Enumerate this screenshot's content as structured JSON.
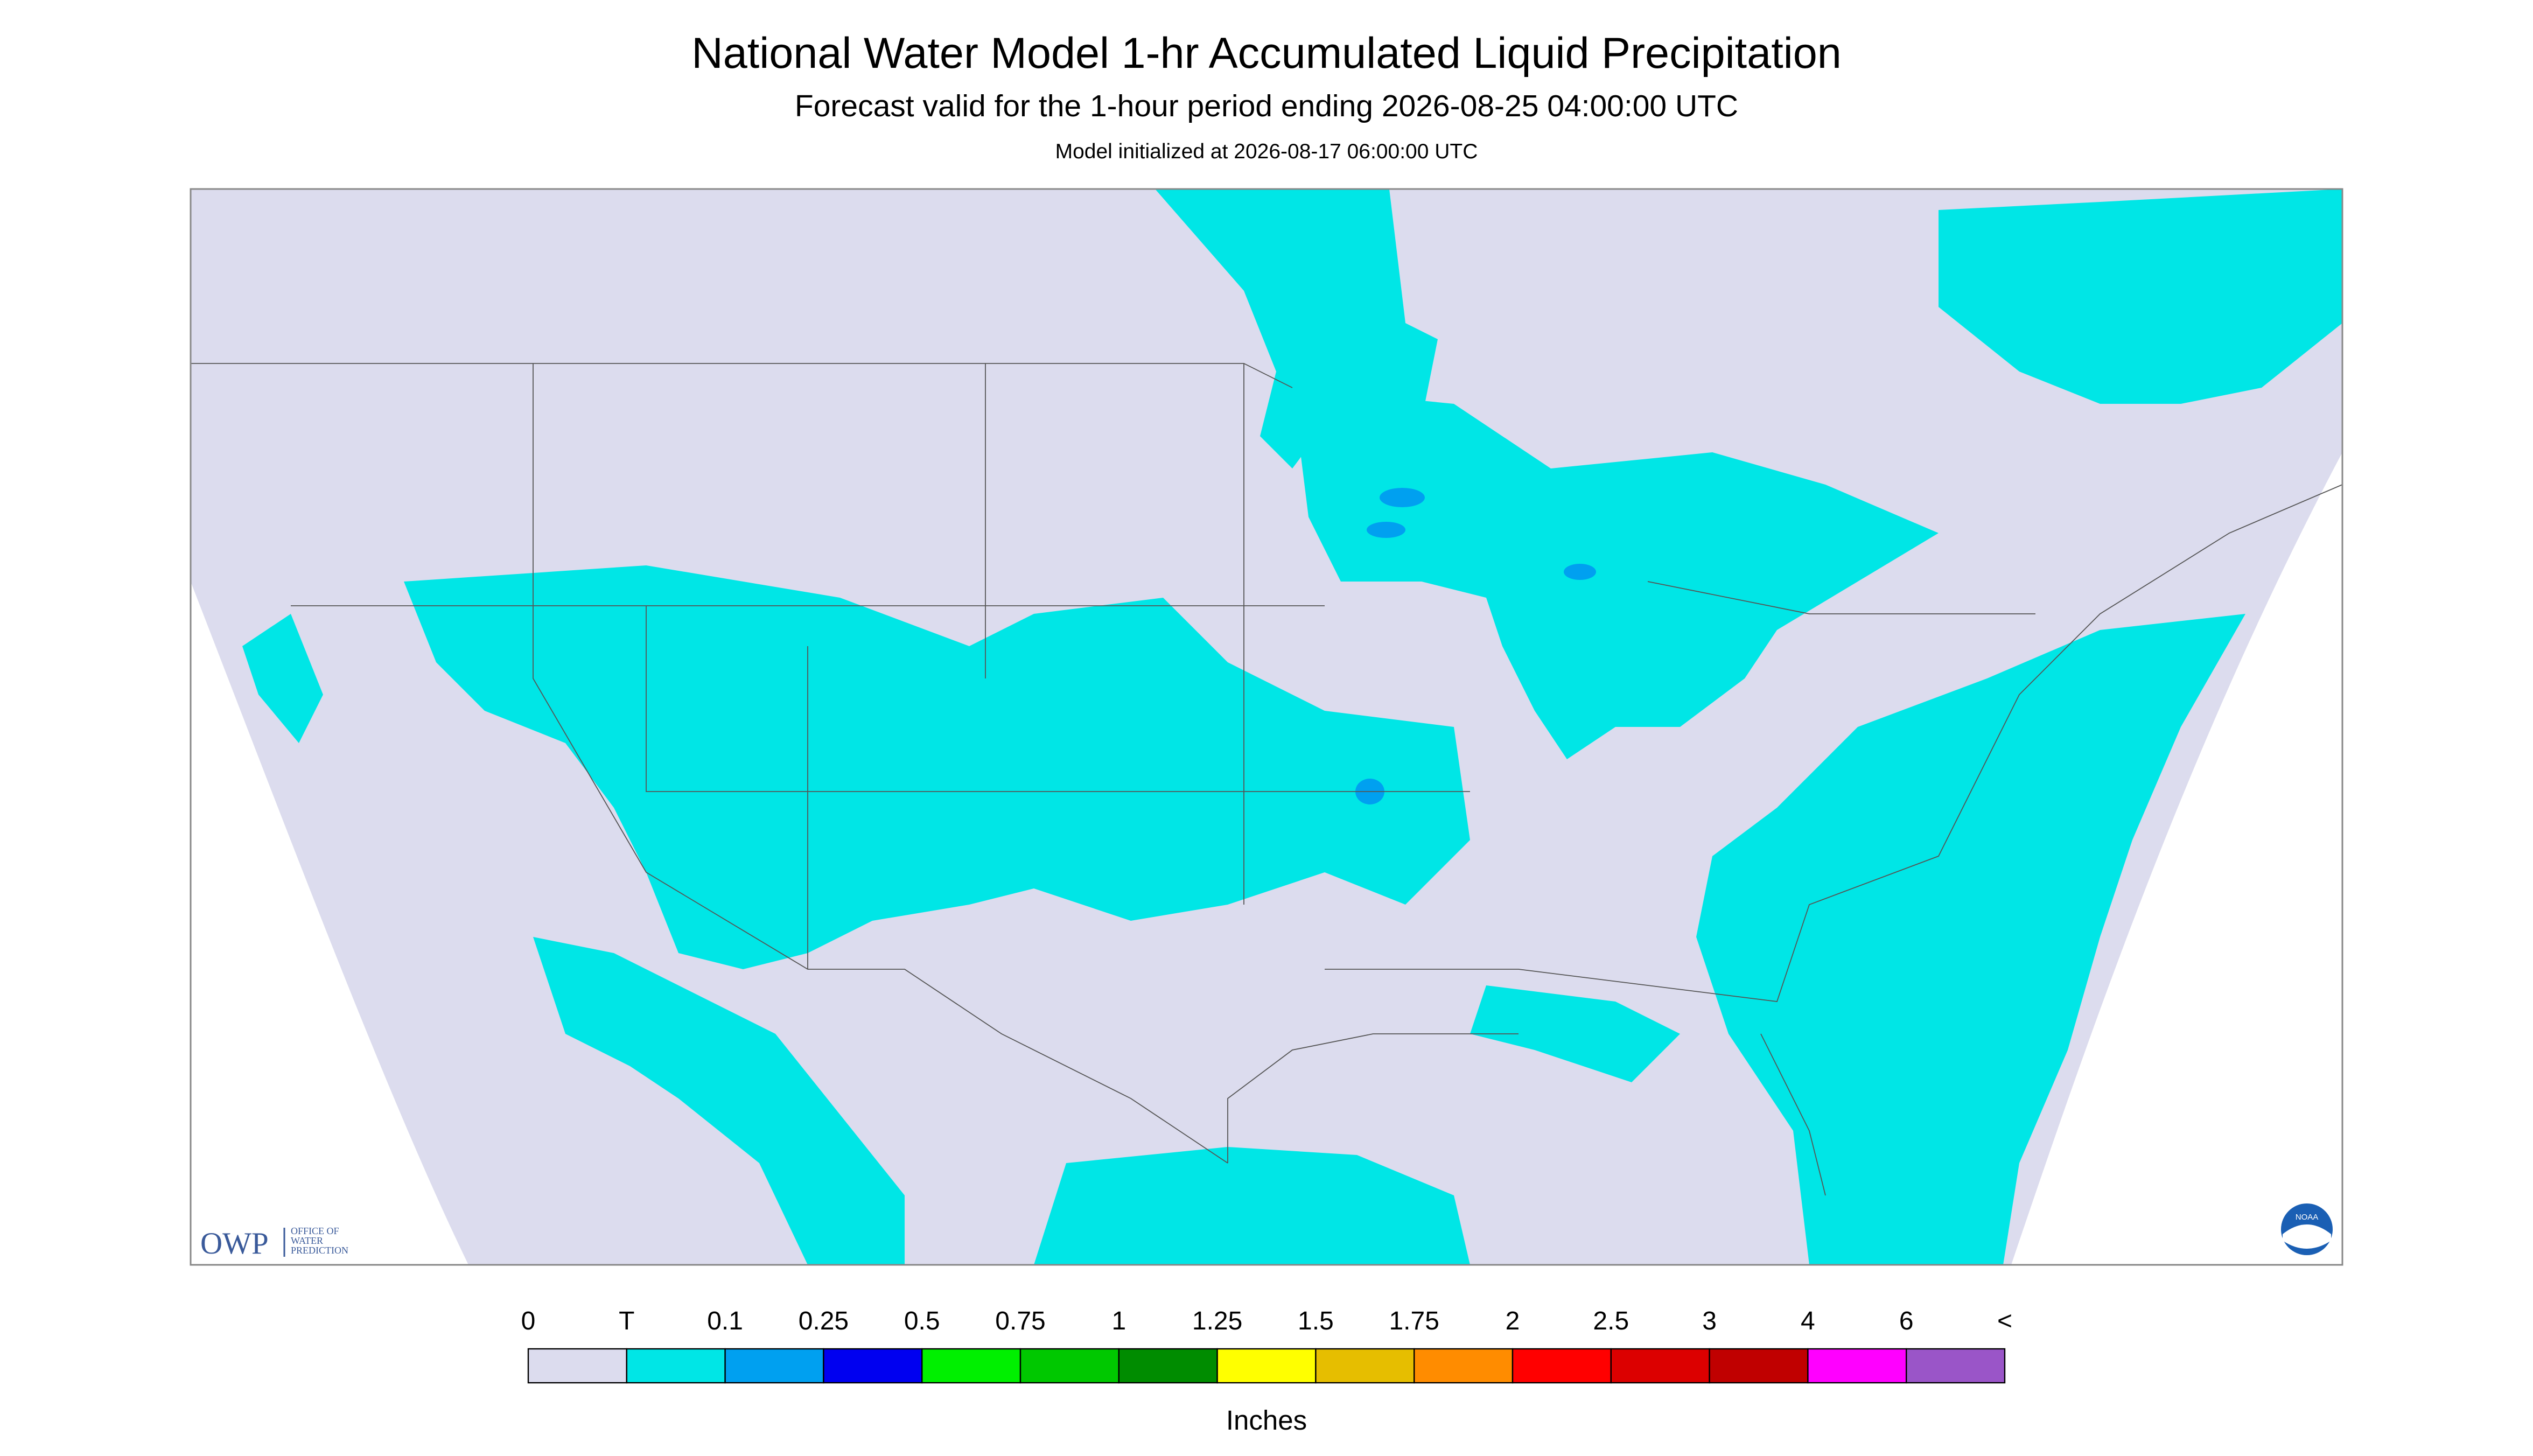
{
  "header": {
    "title": "National Water Model 1-hr Accumulated Liquid Precipitation",
    "subtitle": "Forecast valid for the 1-hour period ending 2026-08-25 04:00:00 UTC",
    "init": "Model initialized at 2026-08-17 06:00:00 UTC"
  },
  "logos": {
    "owp": "OWP",
    "owp_line1": "OFFICE OF",
    "owp_line2": "WATER",
    "owp_line3": "PREDICTION",
    "noaa": "NOAA"
  },
  "colorbar": {
    "labels": [
      "0",
      "T",
      "0.1",
      "0.25",
      "0.5",
      "0.75",
      "1",
      "1.25",
      "1.5",
      "1.75",
      "2",
      "2.5",
      "3",
      "4",
      "6",
      "<"
    ],
    "colors": [
      "#dcdcee",
      "#00e6e6",
      "#00a0f0",
      "#0000f0",
      "#00f000",
      "#00c800",
      "#008c00",
      "#ffff00",
      "#e6be00",
      "#ff8c00",
      "#ff0000",
      "#dc0000",
      "#c00000",
      "#ff00ff",
      "#9a55c8"
    ],
    "unit": "Inches"
  }
}
